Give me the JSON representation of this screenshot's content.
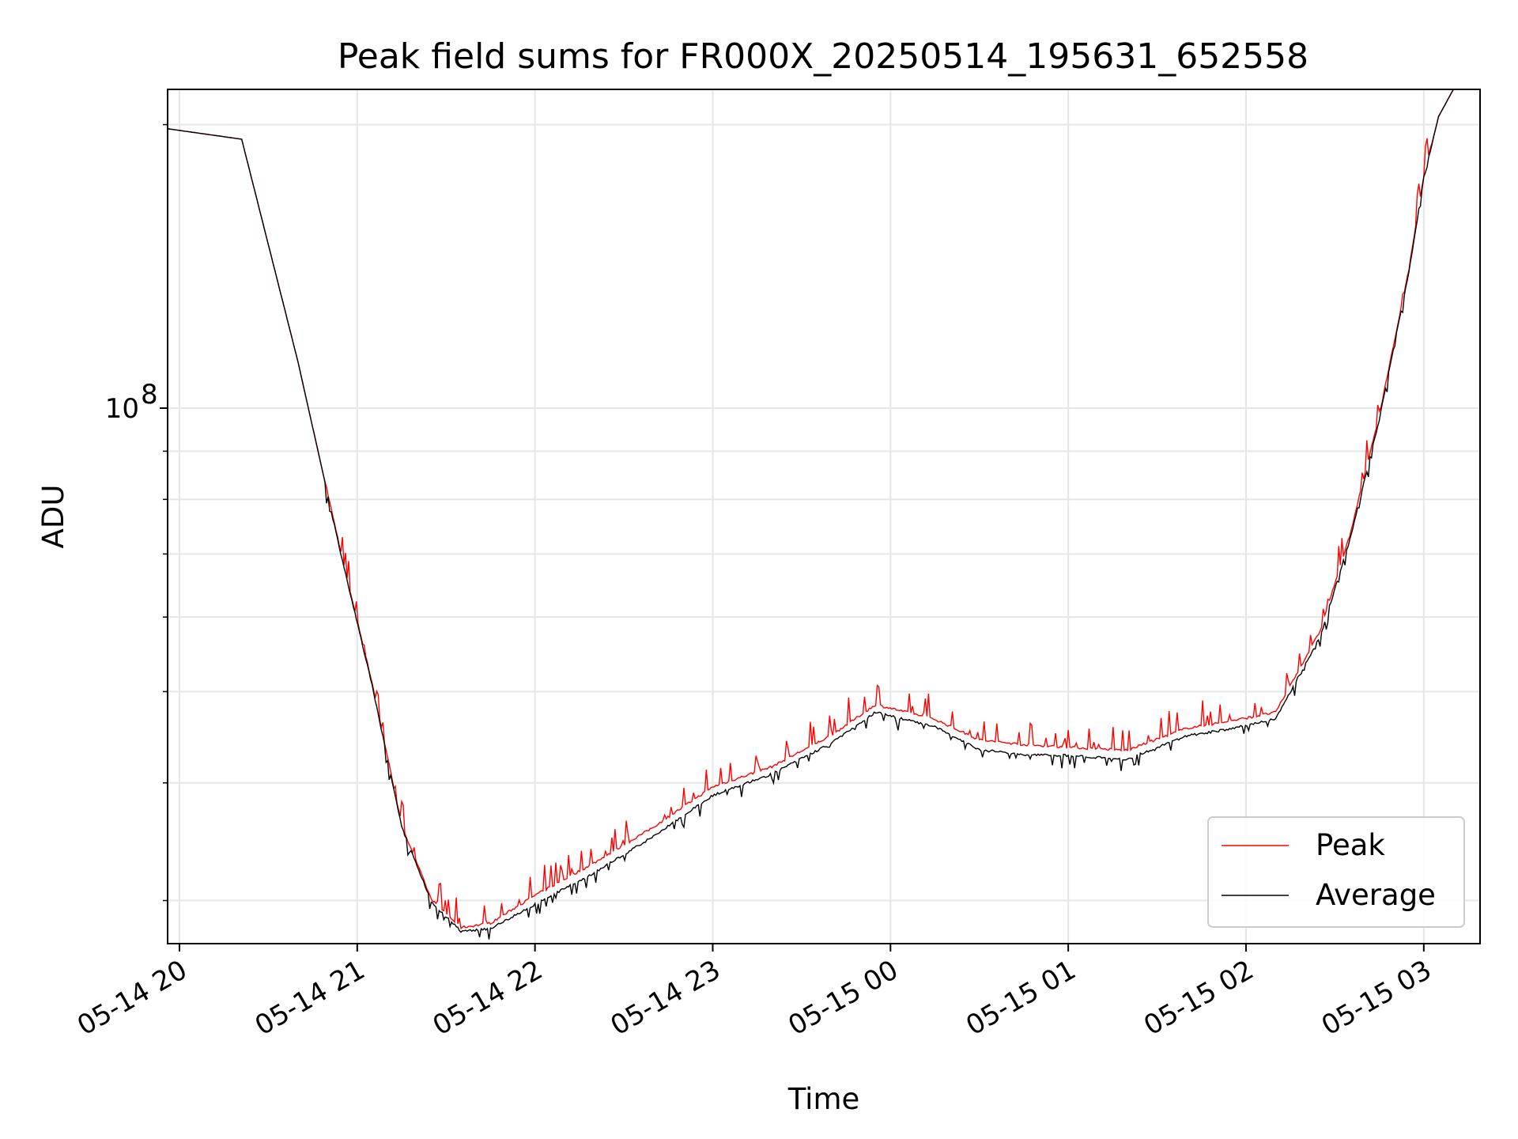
{
  "chart_data": {
    "type": "line",
    "title": "Peak field sums for FR000X_20250514_195631_652558",
    "xlabel": "Time",
    "ylabel": "ADU",
    "y_scale": "log",
    "xlim": [
      "2025-05-14 19:56",
      "2025-05-15 03:19"
    ],
    "ylim": [
      27000000,
      218000000
    ],
    "x_ticks": [
      {
        "t": "2025-05-14 20:00",
        "label": "05-14 20"
      },
      {
        "t": "2025-05-14 21:00",
        "label": "05-14 21"
      },
      {
        "t": "2025-05-14 22:00",
        "label": "05-14 22"
      },
      {
        "t": "2025-05-14 23:00",
        "label": "05-14 23"
      },
      {
        "t": "2025-05-15 00:00",
        "label": "05-15 00"
      },
      {
        "t": "2025-05-15 01:00",
        "label": "05-15 01"
      },
      {
        "t": "2025-05-15 02:00",
        "label": "05-15 02"
      },
      {
        "t": "2025-05-15 03:00",
        "label": "05-15 03"
      }
    ],
    "y_major_ticks": [
      {
        "value": 100000000,
        "base": "10",
        "exp": "8"
      }
    ],
    "y_minor_ticks": [
      30000000,
      40000000,
      50000000,
      60000000,
      70000000,
      80000000,
      90000000,
      200000000
    ],
    "grid": true,
    "legend_position": "lower-right",
    "series": [
      {
        "name": "Peak",
        "color": "#ff0000",
        "noise": "up",
        "x": [
          "2025-05-14 19:56",
          "2025-05-14 20:21",
          "2025-05-14 20:40",
          "2025-05-14 20:55",
          "2025-05-14 21:05",
          "2025-05-14 21:15",
          "2025-05-14 21:25",
          "2025-05-14 21:35",
          "2025-05-14 21:45",
          "2025-05-14 22:00",
          "2025-05-14 22:20",
          "2025-05-14 22:40",
          "2025-05-14 23:00",
          "2025-05-14 23:20",
          "2025-05-14 23:40",
          "2025-05-14 23:55",
          "2025-05-15 00:15",
          "2025-05-15 00:30",
          "2025-05-15 00:45",
          "2025-05-15 01:00",
          "2025-05-15 01:20",
          "2025-05-15 01:40",
          "2025-05-15 01:55",
          "2025-05-15 02:10",
          "2025-05-15 02:25",
          "2025-05-15 02:35",
          "2025-05-15 02:45",
          "2025-05-15 02:55",
          "2025-05-15 03:00",
          "2025-05-15 03:05",
          "2025-05-15 03:10",
          "2025-05-15 03:19"
        ],
        "y": [
          198000000,
          193000000,
          112000000,
          69000000,
          51000000,
          36000000,
          30000000,
          28000000,
          28300000,
          30300000,
          32800000,
          35800000,
          39500000,
          41500000,
          44800000,
          48300000,
          46600000,
          44300000,
          43800000,
          43500000,
          43200000,
          45600000,
          46400000,
          47400000,
          57800000,
          73000000,
          98000000,
          140000000,
          176000000,
          204000000,
          218000000,
          218000000
        ]
      },
      {
        "name": "Average",
        "color": "#000000",
        "noise": "down",
        "x": [
          "2025-05-14 19:56",
          "2025-05-14 20:21",
          "2025-05-14 20:40",
          "2025-05-14 20:55",
          "2025-05-14 21:05",
          "2025-05-14 21:15",
          "2025-05-14 21:25",
          "2025-05-14 21:35",
          "2025-05-14 21:45",
          "2025-05-14 22:00",
          "2025-05-14 22:20",
          "2025-05-14 22:40",
          "2025-05-14 23:00",
          "2025-05-14 23:20",
          "2025-05-14 23:40",
          "2025-05-14 23:55",
          "2025-05-15 00:15",
          "2025-05-15 00:30",
          "2025-05-15 00:45",
          "2025-05-15 01:00",
          "2025-05-15 01:20",
          "2025-05-15 01:40",
          "2025-05-15 01:55",
          "2025-05-15 02:10",
          "2025-05-15 02:25",
          "2025-05-15 02:35",
          "2025-05-15 02:45",
          "2025-05-15 02:55",
          "2025-05-15 03:00",
          "2025-05-15 03:05",
          "2025-05-15 03:10",
          "2025-05-15 03:19"
        ],
        "y": [
          198000000,
          193000000,
          112000000,
          69000000,
          51000000,
          36000000,
          30000000,
          27900000,
          28100000,
          29800000,
          32200000,
          35200000,
          38900000,
          41000000,
          44200000,
          47700000,
          46000000,
          43500000,
          43000000,
          42900000,
          42500000,
          45000000,
          45800000,
          46900000,
          57300000,
          72500000,
          97500000,
          140000000,
          176000000,
          204000000,
          218000000,
          218000000
        ]
      }
    ]
  }
}
